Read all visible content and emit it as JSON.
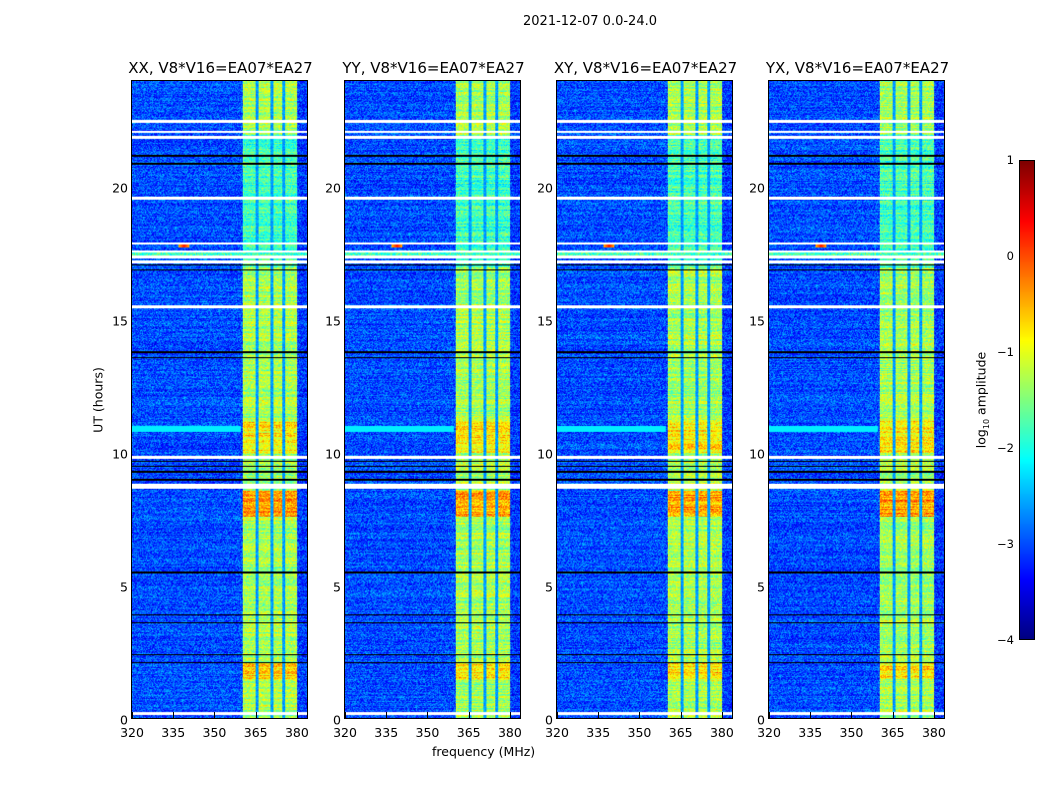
{
  "suptitle": "2021-12-07 0.0-24.0",
  "chart_data": {
    "type": "heatmap",
    "title": "2021-12-07 0.0-24.0",
    "xlabel": "frequency (MHz)",
    "ylabel": "UT (hours)",
    "xlim": [
      320,
      384.4
    ],
    "ylim": [
      0,
      24
    ],
    "xticks": [
      320,
      335,
      350,
      365,
      380
    ],
    "yticks": [
      0,
      5,
      10,
      15,
      20
    ],
    "panels": [
      {
        "title": "XX, V8*V16=EA07*EA27"
      },
      {
        "title": "YY, V8*V16=EA07*EA27"
      },
      {
        "title": "XY, V8*V16=EA07*EA27"
      },
      {
        "title": "YX, V8*V16=EA07*EA27"
      }
    ],
    "background_log_amp": -3.0,
    "bright_band_mhz": [
      360.7,
      380.4
    ],
    "bright_band_log_amp": -1.3,
    "band_gaps_mhz": [
      365.8,
      371.3,
      375.6
    ],
    "flagged_white_hours": [
      0.2,
      8.7,
      8.8,
      9.85,
      15.5,
      17.2,
      17.4,
      17.6,
      17.9,
      19.6,
      21.9,
      22.1,
      22.5
    ],
    "flagged_black_hours": [
      2.1,
      2.4,
      3.6,
      3.9,
      5.5,
      9.0,
      9.3,
      9.5,
      9.7,
      13.6,
      13.8,
      16.9,
      17.1,
      20.9,
      21.2
    ],
    "colorbar": {
      "label_prefix": "log",
      "label_sub": "10",
      "label_suffix": " amplitude",
      "range": [
        -4,
        1
      ],
      "ticks": [
        "1",
        "0",
        "−1",
        "−2",
        "−3",
        "−4"
      ],
      "colormap": "jet"
    }
  }
}
